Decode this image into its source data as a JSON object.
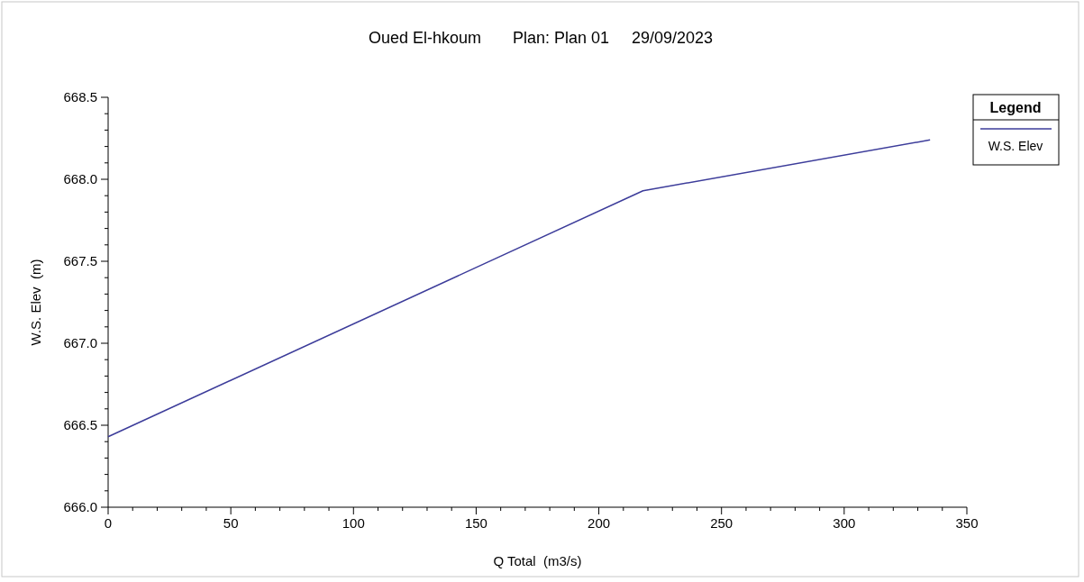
{
  "chart_data": {
    "type": "line",
    "title": "Oued El-hkoum       Plan: Plan 01     29/09/2023",
    "xlabel": "Q Total  (m3/s)",
    "ylabel": "W.S. Elev  (m)",
    "legend_title": "Legend",
    "legend": "top right",
    "grid": false,
    "marker": "none",
    "line_style": "solid",
    "xlim": [
      0,
      350
    ],
    "ylim": [
      666.0,
      668.5
    ],
    "xticks": [
      0,
      {
        "value": 10,
        "label": null
      },
      {
        "value": 20,
        "label": null
      },
      {
        "value": 30,
        "label": null
      },
      {
        "value": 40,
        "label": null
      },
      50,
      {
        "value": 60,
        "label": null
      },
      {
        "value": 70,
        "label": null
      },
      {
        "value": 80,
        "label": null
      },
      {
        "value": 90,
        "label": null
      },
      100,
      {
        "value": 110,
        "label": null
      },
      {
        "value": 120,
        "label": null
      },
      {
        "value": 130,
        "label": null
      },
      {
        "value": 140,
        "label": null
      },
      150,
      {
        "value": 160,
        "label": null
      },
      {
        "value": 170,
        "label": null
      },
      {
        "value": 180,
        "label": null
      },
      {
        "value": 190,
        "label": null
      },
      200,
      {
        "value": 210,
        "label": null
      },
      {
        "value": 220,
        "label": null
      },
      {
        "value": 230,
        "label": null
      },
      {
        "value": 240,
        "label": null
      },
      250,
      {
        "value": 260,
        "label": null
      },
      {
        "value": 270,
        "label": null
      },
      {
        "value": 280,
        "label": null
      },
      {
        "value": 290,
        "label": null
      },
      300,
      {
        "value": 310,
        "label": null
      },
      {
        "value": 320,
        "label": null
      },
      {
        "value": 330,
        "label": null
      },
      {
        "value": 340,
        "label": null
      },
      350
    ],
    "yticks": [
      {
        "value": 666.0,
        "label": "666.0"
      },
      {
        "value": 666.1,
        "label": null
      },
      {
        "value": 666.2,
        "label": null
      },
      {
        "value": 666.3,
        "label": null
      },
      {
        "value": 666.4,
        "label": null
      },
      {
        "value": 666.5,
        "label": "666.5"
      },
      {
        "value": 666.6,
        "label": null
      },
      {
        "value": 666.7,
        "label": null
      },
      {
        "value": 666.8,
        "label": null
      },
      {
        "value": 666.9,
        "label": null
      },
      {
        "value": 667.0,
        "label": "667.0"
      },
      {
        "value": 667.1,
        "label": null
      },
      {
        "value": 667.2,
        "label": null
      },
      {
        "value": 667.3,
        "label": null
      },
      {
        "value": 667.4,
        "label": null
      },
      {
        "value": 667.5,
        "label": "667.5"
      },
      {
        "value": 667.6,
        "label": null
      },
      {
        "value": 667.7,
        "label": null
      },
      {
        "value": 667.8,
        "label": null
      },
      {
        "value": 667.9,
        "label": null
      },
      {
        "value": 668.0,
        "label": "668.0"
      },
      {
        "value": 668.1,
        "label": null
      },
      {
        "value": 668.2,
        "label": null
      },
      {
        "value": 668.3,
        "label": null
      },
      {
        "value": 668.4,
        "label": null
      },
      {
        "value": 668.5,
        "label": "668.5"
      }
    ],
    "series": [
      {
        "name": "W.S. Elev",
        "color": "#3c3c9a",
        "x": [
          0,
          218,
          335
        ],
        "values": [
          666.43,
          667.93,
          668.24
        ]
      }
    ]
  }
}
